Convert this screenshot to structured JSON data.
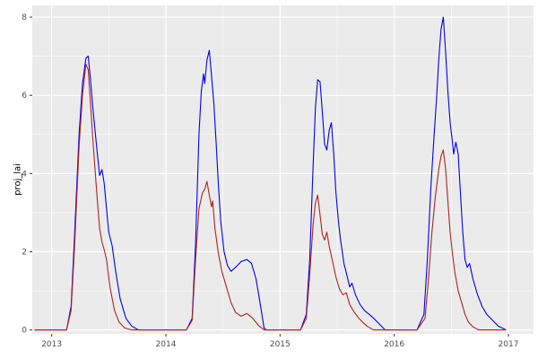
{
  "chart_data": {
    "type": "line",
    "title": "",
    "xlabel": "",
    "ylabel": "proj_lai",
    "x_ticks": [
      2013,
      2014,
      2015,
      2016,
      2017
    ],
    "x_tick_labels": [
      "2013",
      "2014",
      "2015",
      "2016",
      "2017"
    ],
    "y_ticks": [
      0,
      2,
      4,
      6,
      8
    ],
    "y_tick_labels": [
      "0",
      "2",
      "4",
      "6",
      "8"
    ],
    "xlim": [
      2012.83,
      2017.22
    ],
    "ylim": [
      -0.1,
      8.3
    ],
    "grid": true,
    "legend": "none",
    "panel_bg": "#EBEBEB",
    "grid_major_color": "#FFFFFF",
    "grid_minor_color": "#F7F7F7",
    "tick_color": "#333333",
    "tick_label_color": "#4D4D4D",
    "series": [
      {
        "name": "blue-series",
        "color": "#0000EE",
        "points": [
          [
            2012.85,
            0
          ],
          [
            2013.13,
            0
          ],
          [
            2013.17,
            0.6
          ],
          [
            2013.2,
            2.4
          ],
          [
            2013.24,
            5
          ],
          [
            2013.27,
            6.3
          ],
          [
            2013.3,
            6.95
          ],
          [
            2013.32,
            7
          ],
          [
            2013.34,
            6.4
          ],
          [
            2013.36,
            5.7
          ],
          [
            2013.38,
            5.1
          ],
          [
            2013.4,
            4.5
          ],
          [
            2013.42,
            3.95
          ],
          [
            2013.44,
            4.1
          ],
          [
            2013.46,
            3.75
          ],
          [
            2013.48,
            3.1
          ],
          [
            2013.5,
            2.5
          ],
          [
            2013.53,
            2.15
          ],
          [
            2013.56,
            1.5
          ],
          [
            2013.6,
            0.8
          ],
          [
            2013.65,
            0.3
          ],
          [
            2013.7,
            0.1
          ],
          [
            2013.76,
            0
          ],
          [
            2014.18,
            0
          ],
          [
            2014.23,
            0.3
          ],
          [
            2014.26,
            2.2
          ],
          [
            2014.29,
            5
          ],
          [
            2014.31,
            6.1
          ],
          [
            2014.33,
            6.55
          ],
          [
            2014.34,
            6.3
          ],
          [
            2014.36,
            6.9
          ],
          [
            2014.38,
            7.15
          ],
          [
            2014.4,
            6.5
          ],
          [
            2014.42,
            5.8
          ],
          [
            2014.44,
            4.8
          ],
          [
            2014.46,
            3.7
          ],
          [
            2014.48,
            2.8
          ],
          [
            2014.51,
            2
          ],
          [
            2014.54,
            1.65
          ],
          [
            2014.57,
            1.5
          ],
          [
            2014.61,
            1.6
          ],
          [
            2014.66,
            1.75
          ],
          [
            2014.71,
            1.8
          ],
          [
            2014.75,
            1.7
          ],
          [
            2014.79,
            1.3
          ],
          [
            2014.83,
            0.6
          ],
          [
            2014.86,
            0.05
          ],
          [
            2014.88,
            0
          ],
          [
            2015.18,
            0
          ],
          [
            2015.23,
            0.4
          ],
          [
            2015.26,
            1.8
          ],
          [
            2015.29,
            4.2
          ],
          [
            2015.31,
            5.7
          ],
          [
            2015.33,
            6.4
          ],
          [
            2015.35,
            6.35
          ],
          [
            2015.37,
            5.6
          ],
          [
            2015.39,
            4.75
          ],
          [
            2015.41,
            4.6
          ],
          [
            2015.43,
            5.1
          ],
          [
            2015.45,
            5.3
          ],
          [
            2015.47,
            4.5
          ],
          [
            2015.49,
            3.5
          ],
          [
            2015.51,
            2.8
          ],
          [
            2015.53,
            2.3
          ],
          [
            2015.56,
            1.7
          ],
          [
            2015.59,
            1.35
          ],
          [
            2015.61,
            1.1
          ],
          [
            2015.63,
            1.2
          ],
          [
            2015.66,
            0.9
          ],
          [
            2015.7,
            0.65
          ],
          [
            2015.74,
            0.5
          ],
          [
            2015.78,
            0.4
          ],
          [
            2015.82,
            0.3
          ],
          [
            2015.87,
            0.15
          ],
          [
            2015.92,
            0
          ],
          [
            2016.2,
            0
          ],
          [
            2016.26,
            0.4
          ],
          [
            2016.29,
            1.8
          ],
          [
            2016.32,
            3.6
          ],
          [
            2016.35,
            5
          ],
          [
            2016.37,
            5.9
          ],
          [
            2016.39,
            6.9
          ],
          [
            2016.41,
            7.7
          ],
          [
            2016.43,
            8
          ],
          [
            2016.45,
            7.1
          ],
          [
            2016.47,
            6.1
          ],
          [
            2016.49,
            5.3
          ],
          [
            2016.51,
            4.8
          ],
          [
            2016.52,
            4.5
          ],
          [
            2016.54,
            4.8
          ],
          [
            2016.56,
            4.5
          ],
          [
            2016.58,
            3.5
          ],
          [
            2016.6,
            2.5
          ],
          [
            2016.62,
            1.8
          ],
          [
            2016.64,
            1.6
          ],
          [
            2016.66,
            1.7
          ],
          [
            2016.69,
            1.3
          ],
          [
            2016.73,
            0.9
          ],
          [
            2016.77,
            0.6
          ],
          [
            2016.81,
            0.4
          ],
          [
            2016.86,
            0.25
          ],
          [
            2016.91,
            0.1
          ],
          [
            2016.98,
            0
          ]
        ]
      },
      {
        "name": "red-series",
        "color": "#B22222",
        "points": [
          [
            2012.85,
            0
          ],
          [
            2013.13,
            0
          ],
          [
            2013.17,
            0.5
          ],
          [
            2013.2,
            2.1
          ],
          [
            2013.24,
            4.7
          ],
          [
            2013.27,
            6
          ],
          [
            2013.3,
            6.8
          ],
          [
            2013.32,
            6.65
          ],
          [
            2013.34,
            5.8
          ],
          [
            2013.36,
            4.9
          ],
          [
            2013.38,
            4.1
          ],
          [
            2013.4,
            3.3
          ],
          [
            2013.42,
            2.6
          ],
          [
            2013.44,
            2.25
          ],
          [
            2013.46,
            2.05
          ],
          [
            2013.48,
            1.8
          ],
          [
            2013.51,
            1.1
          ],
          [
            2013.55,
            0.5
          ],
          [
            2013.59,
            0.2
          ],
          [
            2013.64,
            0.05
          ],
          [
            2013.7,
            0
          ],
          [
            2014.18,
            0
          ],
          [
            2014.23,
            0.25
          ],
          [
            2014.26,
            1.8
          ],
          [
            2014.29,
            3.1
          ],
          [
            2014.32,
            3.5
          ],
          [
            2014.34,
            3.6
          ],
          [
            2014.36,
            3.8
          ],
          [
            2014.38,
            3.45
          ],
          [
            2014.4,
            3.15
          ],
          [
            2014.41,
            3.3
          ],
          [
            2014.43,
            2.6
          ],
          [
            2014.46,
            1.95
          ],
          [
            2014.49,
            1.5
          ],
          [
            2014.53,
            1.1
          ],
          [
            2014.57,
            0.7
          ],
          [
            2014.61,
            0.45
          ],
          [
            2014.66,
            0.35
          ],
          [
            2014.71,
            0.42
          ],
          [
            2014.76,
            0.3
          ],
          [
            2014.81,
            0.12
          ],
          [
            2014.86,
            0
          ],
          [
            2015.18,
            0
          ],
          [
            2015.23,
            0.3
          ],
          [
            2015.26,
            1.4
          ],
          [
            2015.29,
            2.7
          ],
          [
            2015.31,
            3.25
          ],
          [
            2015.33,
            3.45
          ],
          [
            2015.35,
            2.95
          ],
          [
            2015.37,
            2.45
          ],
          [
            2015.39,
            2.3
          ],
          [
            2015.41,
            2.5
          ],
          [
            2015.43,
            2.15
          ],
          [
            2015.46,
            1.75
          ],
          [
            2015.49,
            1.35
          ],
          [
            2015.52,
            1.05
          ],
          [
            2015.55,
            0.9
          ],
          [
            2015.58,
            0.95
          ],
          [
            2015.61,
            0.65
          ],
          [
            2015.65,
            0.45
          ],
          [
            2015.69,
            0.3
          ],
          [
            2015.73,
            0.18
          ],
          [
            2015.77,
            0.08
          ],
          [
            2015.82,
            0
          ],
          [
            2016.2,
            0
          ],
          [
            2016.27,
            0.3
          ],
          [
            2016.3,
            1.3
          ],
          [
            2016.33,
            2.5
          ],
          [
            2016.36,
            3.4
          ],
          [
            2016.39,
            4.1
          ],
          [
            2016.41,
            4.45
          ],
          [
            2016.43,
            4.6
          ],
          [
            2016.45,
            4.1
          ],
          [
            2016.47,
            3.3
          ],
          [
            2016.49,
            2.5
          ],
          [
            2016.51,
            1.95
          ],
          [
            2016.53,
            1.5
          ],
          [
            2016.56,
            1
          ],
          [
            2016.59,
            0.7
          ],
          [
            2016.62,
            0.4
          ],
          [
            2016.65,
            0.2
          ],
          [
            2016.69,
            0.08
          ],
          [
            2016.74,
            0
          ],
          [
            2016.98,
            0
          ]
        ]
      }
    ]
  }
}
